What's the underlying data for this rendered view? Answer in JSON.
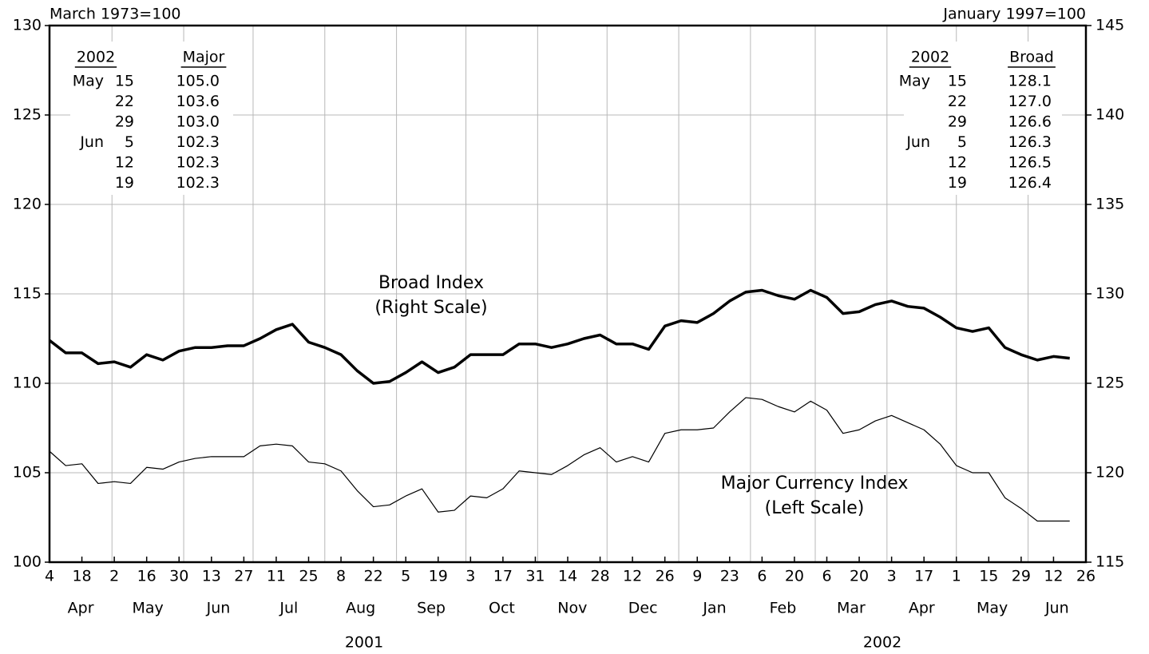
{
  "chart_data": {
    "type": "line",
    "y_label": "March 1973=100",
    "y2_label": "January 1997=100",
    "x": [
      "2001-04-04",
      "2001-04-11",
      "2001-04-18",
      "2001-04-25",
      "2001-05-02",
      "2001-05-09",
      "2001-05-16",
      "2001-05-23",
      "2001-05-30",
      "2001-06-06",
      "2001-06-13",
      "2001-06-20",
      "2001-06-27",
      "2001-07-04",
      "2001-07-11",
      "2001-07-18",
      "2001-07-25",
      "2001-08-01",
      "2001-08-08",
      "2001-08-15",
      "2001-08-22",
      "2001-08-29",
      "2001-09-05",
      "2001-09-12",
      "2001-09-19",
      "2001-09-26",
      "2001-10-03",
      "2001-10-10",
      "2001-10-17",
      "2001-10-24",
      "2001-10-31",
      "2001-11-07",
      "2001-11-14",
      "2001-11-21",
      "2001-11-28",
      "2001-12-05",
      "2001-12-12",
      "2001-12-19",
      "2001-12-26",
      "2002-01-02",
      "2002-01-09",
      "2002-01-16",
      "2002-01-23",
      "2002-01-30",
      "2002-02-06",
      "2002-02-13",
      "2002-02-20",
      "2002-02-27",
      "2002-03-06",
      "2002-03-13",
      "2002-03-20",
      "2002-03-27",
      "2002-04-03",
      "2002-04-10",
      "2002-04-17",
      "2002-04-24",
      "2002-05-01",
      "2002-05-08",
      "2002-05-15",
      "2002-05-22",
      "2002-05-29",
      "2002-06-05",
      "2002-06-12",
      "2002-06-19"
    ],
    "series": [
      {
        "name": "Broad Index",
        "axis": "y2",
        "color": "#000000",
        "linewidth": 3.5,
        "values": [
          127.4,
          126.7,
          126.7,
          126.1,
          126.2,
          125.9,
          126.6,
          126.3,
          126.8,
          127.0,
          127.0,
          127.1,
          127.1,
          127.5,
          128.0,
          128.3,
          127.3,
          127.0,
          126.6,
          125.7,
          125.0,
          125.1,
          125.6,
          126.2,
          125.6,
          125.9,
          126.6,
          126.6,
          126.6,
          127.2,
          127.2,
          127.0,
          127.2,
          127.5,
          127.7,
          127.2,
          127.2,
          126.9,
          128.2,
          128.5,
          128.4,
          128.9,
          129.6,
          130.1,
          130.2,
          129.9,
          129.7,
          130.2,
          129.8,
          128.9,
          129.0,
          129.4,
          129.6,
          129.3,
          129.2,
          128.7,
          128.1,
          127.9,
          128.1,
          127.0,
          126.6,
          126.3,
          126.5,
          126.4
        ]
      },
      {
        "name": "Major Currency Index",
        "color": "#000000",
        "linewidth": 1.2,
        "values": [
          106.2,
          105.4,
          105.5,
          104.4,
          104.5,
          104.4,
          105.3,
          105.2,
          105.6,
          105.8,
          105.9,
          105.9,
          105.9,
          106.5,
          106.6,
          106.5,
          105.6,
          105.5,
          105.1,
          104.0,
          103.1,
          103.2,
          103.7,
          104.1,
          102.8,
          102.9,
          103.7,
          103.6,
          104.1,
          105.1,
          105.0,
          104.9,
          105.4,
          106.0,
          106.4,
          105.6,
          105.9,
          105.6,
          107.2,
          107.4,
          107.4,
          107.5,
          108.4,
          109.2,
          109.1,
          108.7,
          108.4,
          109.0,
          108.5,
          107.2,
          107.4,
          107.9,
          108.2,
          107.8,
          107.4,
          106.6,
          105.4,
          105.0,
          105.0,
          103.6,
          103.0,
          102.3,
          102.3,
          102.3
        ]
      }
    ],
    "annotations": [
      [
        "Broad Index",
        "(Right Scale)"
      ],
      [
        "Major Currency Index",
        "(Left Scale)"
      ]
    ],
    "xlim": [
      "2001-04-04",
      "2002-06-26"
    ],
    "xticks": [
      {
        "value": "2001-04-04",
        "label": "4"
      },
      {
        "value": "2001-04-18",
        "label": "18"
      },
      {
        "value": "2001-05-02",
        "label": "2"
      },
      {
        "value": "2001-05-16",
        "label": "16"
      },
      {
        "value": "2001-05-30",
        "label": "30"
      },
      {
        "value": "2001-06-13",
        "label": "13"
      },
      {
        "value": "2001-06-27",
        "label": "27"
      },
      {
        "value": "2001-07-11",
        "label": "11"
      },
      {
        "value": "2001-07-25",
        "label": "25"
      },
      {
        "value": "2001-08-08",
        "label": "8"
      },
      {
        "value": "2001-08-22",
        "label": "22"
      },
      {
        "value": "2001-09-05",
        "label": "5"
      },
      {
        "value": "2001-09-19",
        "label": "19"
      },
      {
        "value": "2001-10-03",
        "label": "3"
      },
      {
        "value": "2001-10-17",
        "label": "17"
      },
      {
        "value": "2001-10-31",
        "label": "31"
      },
      {
        "value": "2001-11-14",
        "label": "14"
      },
      {
        "value": "2001-11-28",
        "label": "28"
      },
      {
        "value": "2001-12-12",
        "label": "12"
      },
      {
        "value": "2001-12-26",
        "label": "26"
      },
      {
        "value": "2002-01-09",
        "label": "9"
      },
      {
        "value": "2002-01-23",
        "label": "23"
      },
      {
        "value": "2002-02-06",
        "label": "6"
      },
      {
        "value": "2002-02-20",
        "label": "20"
      },
      {
        "value": "2002-03-06",
        "label": "6"
      },
      {
        "value": "2002-03-20",
        "label": "20"
      },
      {
        "value": "2002-04-03",
        "label": "3"
      },
      {
        "value": "2002-04-17",
        "label": "17"
      },
      {
        "value": "2002-05-01",
        "label": "1"
      },
      {
        "value": "2002-05-15",
        "label": "15"
      },
      {
        "value": "2002-05-29",
        "label": "29"
      },
      {
        "value": "2002-06-12",
        "label": "12"
      },
      {
        "value": "2002-06-26",
        "label": "26"
      }
    ],
    "xgrid": [
      "2001-05-01",
      "2001-06-01",
      "2001-07-01",
      "2001-08-01",
      "2001-09-01",
      "2001-10-01",
      "2001-11-01",
      "2001-12-01",
      "2002-01-01",
      "2002-02-01",
      "2002-03-01",
      "2002-04-01",
      "2002-05-01",
      "2002-06-01"
    ],
    "months": [
      "Apr",
      "May",
      "Jun",
      "Jul",
      "Aug",
      "Sep",
      "Oct",
      "Nov",
      "Dec",
      "Jan",
      "Feb",
      "Mar",
      "Apr",
      "May",
      "Jun"
    ],
    "years": [
      "2001",
      "2002"
    ],
    "ylim": [
      100,
      130
    ],
    "yticks": [
      100,
      105,
      110,
      115,
      120,
      125,
      130
    ],
    "y2lim": [
      115,
      145
    ],
    "y2ticks": [
      115,
      120,
      125,
      130,
      135,
      140,
      145
    ],
    "grid": true,
    "tables": [
      {
        "headers": [
          "2002",
          "Major"
        ],
        "rows": [
          {
            "month": "May",
            "day": 15,
            "value": "105.0"
          },
          {
            "day": 22,
            "value": "103.6"
          },
          {
            "day": 29,
            "value": "103.0"
          },
          {
            "month": "Jun",
            "day": 5,
            "value": "102.3"
          },
          {
            "day": 12,
            "value": "102.3"
          },
          {
            "day": 19,
            "value": "102.3"
          }
        ]
      },
      {
        "headers": [
          "2002",
          "Broad"
        ],
        "rows": [
          {
            "month": "May",
            "day": 15,
            "value": "128.1"
          },
          {
            "day": 22,
            "value": "127.0"
          },
          {
            "day": 29,
            "value": "126.6"
          },
          {
            "month": "Jun",
            "day": 5,
            "value": "126.3"
          },
          {
            "day": 12,
            "value": "126.5"
          },
          {
            "day": 19,
            "value": "126.4"
          }
        ]
      }
    ]
  }
}
